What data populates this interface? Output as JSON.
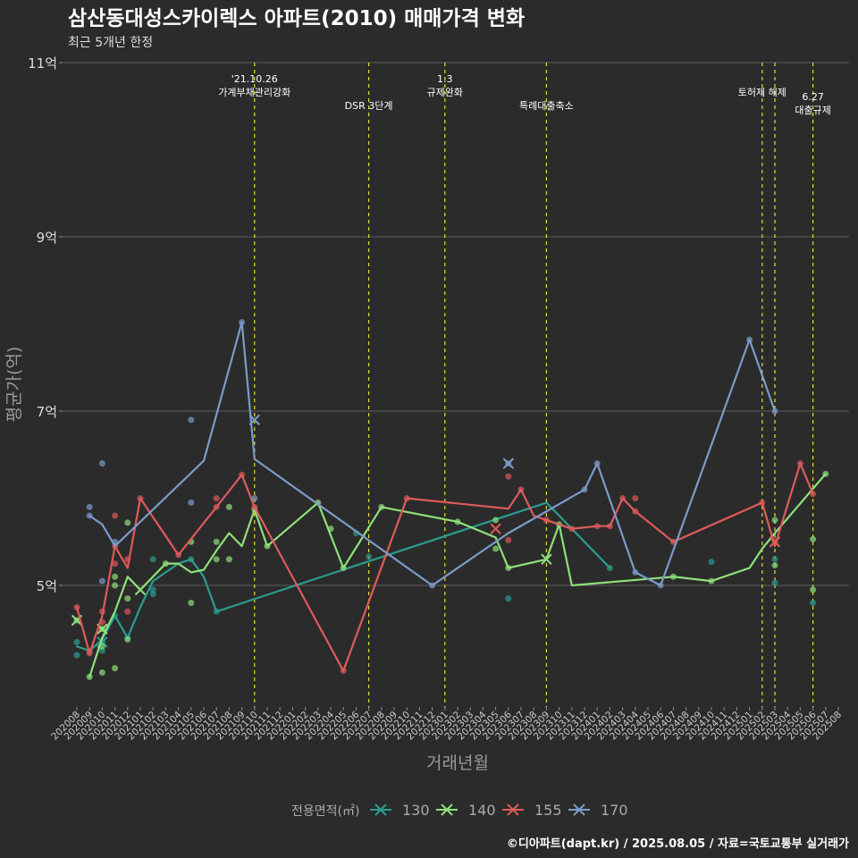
{
  "chart_data": {
    "type": "line",
    "title": "삼산동대성스카이렉스 아파트(2010) 매매가격 변화",
    "subtitle": "최근 5개년 한정",
    "xlabel": "거래년월",
    "ylabel": "평균가(억)",
    "caption": "©디아파트(dapt.kr) / 2025.08.05 / 자료=국토교통부 실거래가",
    "legend_title": "전용면적(㎡)",
    "legend_position": "bottom",
    "grid": true,
    "ylim": [
      3.7,
      11.0
    ],
    "y_ticks": [
      {
        "value": 5,
        "label": "5억"
      },
      {
        "value": 7,
        "label": "7억"
      },
      {
        "value": 9,
        "label": "9억"
      },
      {
        "value": 11,
        "label": "11억"
      }
    ],
    "months": [
      "202008",
      "202009",
      "202010",
      "202011",
      "202012",
      "202101",
      "202102",
      "202103",
      "202104",
      "202105",
      "202106",
      "202107",
      "202108",
      "202109",
      "202110",
      "202111",
      "202112",
      "202201",
      "202202",
      "202203",
      "202204",
      "202205",
      "202206",
      "202207",
      "202208",
      "202209",
      "202210",
      "202211",
      "202212",
      "202301",
      "202302",
      "202303",
      "202304",
      "202305",
      "202306",
      "202307",
      "202308",
      "202309",
      "202310",
      "202311",
      "202312",
      "202401",
      "202402",
      "202403",
      "202404",
      "202405",
      "202406",
      "202407",
      "202408",
      "202409",
      "202410",
      "202411",
      "202412",
      "202501",
      "202502",
      "202503",
      "202504",
      "202505",
      "202506",
      "202507",
      "202508"
    ],
    "events": [
      {
        "month": "202110",
        "label_lines": [
          "'21.10.26",
          "가계부채관리강화"
        ],
        "label_row": 0
      },
      {
        "month": "202207",
        "label_lines": [
          "DSR 3단계"
        ],
        "label_row": 2
      },
      {
        "month": "202301",
        "label_lines": [
          "1.3",
          "규제완화"
        ],
        "label_row": 0
      },
      {
        "month": "202309",
        "label_lines": [
          "특례대출축소"
        ],
        "label_row": 2
      },
      {
        "month": "202502",
        "label_lines": [
          "토허제 해제"
        ],
        "label_row": 1
      },
      {
        "month": "202503",
        "label_lines": [],
        "label_row": 1
      },
      {
        "month": "202506",
        "label_lines": [
          "6.27",
          "대출규제"
        ],
        "label_row": 3
      }
    ],
    "series": [
      {
        "name": "130",
        "color": "#2a9d8f",
        "line": [
          [
            "202008",
            4.3
          ],
          [
            "202009",
            4.25
          ],
          [
            "202010",
            4.38
          ],
          [
            "202011",
            4.65
          ],
          [
            "202012",
            4.4
          ],
          [
            "202101",
            4.75
          ],
          [
            "202102",
            5.05
          ],
          [
            "202104",
            5.25
          ],
          [
            "202105",
            5.3
          ],
          [
            "202106",
            5.1
          ],
          [
            "202107",
            4.7
          ],
          [
            "202309",
            5.95
          ],
          [
            "202402",
            5.2
          ]
        ],
        "points": [
          [
            "202008",
            4.2
          ],
          [
            "202008",
            4.35
          ],
          [
            "202009",
            4.25
          ],
          [
            "202010",
            4.25
          ],
          [
            "202010",
            4.35
          ],
          [
            "202011",
            4.65
          ],
          [
            "202012",
            4.4
          ],
          [
            "202102",
            4.9
          ],
          [
            "202102",
            4.95
          ],
          [
            "202102",
            5.3
          ],
          [
            "202105",
            5.3
          ],
          [
            "202107",
            4.7
          ],
          [
            "202206",
            5.6
          ],
          [
            "202207",
            5.33
          ],
          [
            "202306",
            4.85
          ],
          [
            "202402",
            5.2
          ],
          [
            "202410",
            5.27
          ],
          [
            "202503",
            5.03
          ],
          [
            "202503",
            5.3
          ],
          [
            "202506",
            4.8
          ]
        ],
        "markers": [
          [
            "202010",
            4.35
          ]
        ]
      },
      {
        "name": "140",
        "color": "#8fe07a",
        "line": [
          [
            "202009",
            3.95
          ],
          [
            "202010",
            4.4
          ],
          [
            "202011",
            4.7
          ],
          [
            "202012",
            5.1
          ],
          [
            "202101",
            4.95
          ],
          [
            "202103",
            5.25
          ],
          [
            "202104",
            5.25
          ],
          [
            "202105",
            5.15
          ],
          [
            "202106",
            5.18
          ],
          [
            "202107",
            5.4
          ],
          [
            "202108",
            5.6
          ],
          [
            "202109",
            5.45
          ],
          [
            "202110",
            5.87
          ],
          [
            "202111",
            5.45
          ],
          [
            "202203",
            5.95
          ],
          [
            "202205",
            5.2
          ],
          [
            "202208",
            5.9
          ],
          [
            "202302",
            5.73
          ],
          [
            "202305",
            5.55
          ],
          [
            "202306",
            5.2
          ],
          [
            "202309",
            5.3
          ],
          [
            "202310",
            5.7
          ],
          [
            "202311",
            5.0
          ],
          [
            "202407",
            5.1
          ],
          [
            "202410",
            5.05
          ],
          [
            "202501",
            5.2
          ],
          [
            "202502",
            5.42
          ],
          [
            "202503",
            5.6
          ],
          [
            "202507",
            6.28
          ]
        ],
        "points": [
          [
            "202008",
            4.6
          ],
          [
            "202009",
            3.95
          ],
          [
            "202010",
            4.0
          ],
          [
            "202010",
            4.3
          ],
          [
            "202010",
            4.5
          ],
          [
            "202011",
            4.05
          ],
          [
            "202011",
            5.0
          ],
          [
            "202011",
            5.1
          ],
          [
            "202012",
            4.85
          ],
          [
            "202012",
            5.72
          ],
          [
            "202012",
            4.38
          ],
          [
            "202103",
            5.25
          ],
          [
            "202105",
            4.8
          ],
          [
            "202105",
            5.5
          ],
          [
            "202107",
            5.3
          ],
          [
            "202107",
            5.5
          ],
          [
            "202108",
            5.3
          ],
          [
            "202108",
            5.9
          ],
          [
            "202110",
            5.87
          ],
          [
            "202111",
            5.45
          ],
          [
            "202203",
            5.95
          ],
          [
            "202204",
            5.65
          ],
          [
            "202205",
            5.2
          ],
          [
            "202208",
            5.9
          ],
          [
            "202302",
            5.73
          ],
          [
            "202305",
            5.42
          ],
          [
            "202305",
            5.75
          ],
          [
            "202306",
            5.2
          ],
          [
            "202310",
            5.7
          ],
          [
            "202407",
            5.1
          ],
          [
            "202410",
            5.05
          ],
          [
            "202503",
            5.75
          ],
          [
            "202503",
            5.23
          ],
          [
            "202506",
            5.53
          ],
          [
            "202506",
            4.95
          ],
          [
            "202507",
            6.28
          ]
        ],
        "markers": [
          [
            "202008",
            4.6
          ],
          [
            "202010",
            4.5
          ],
          [
            "202101",
            4.95
          ],
          [
            "202309",
            5.3
          ]
        ]
      },
      {
        "name": "155",
        "color": "#e05a5a",
        "line": [
          [
            "202008",
            4.75
          ],
          [
            "202009",
            4.22
          ],
          [
            "202010",
            4.65
          ],
          [
            "202011",
            5.45
          ],
          [
            "202012",
            5.2
          ],
          [
            "202101",
            6.0
          ],
          [
            "202104",
            5.35
          ],
          [
            "202107",
            5.9
          ],
          [
            "202109",
            6.27
          ],
          [
            "202110",
            5.9
          ],
          [
            "202205",
            4.02
          ],
          [
            "202210",
            6.0
          ],
          [
            "202306",
            5.88
          ],
          [
            "202307",
            6.1
          ],
          [
            "202308",
            5.8
          ],
          [
            "202309",
            5.75
          ],
          [
            "202311",
            5.65
          ],
          [
            "202401",
            5.68
          ],
          [
            "202402",
            5.68
          ],
          [
            "202403",
            6.0
          ],
          [
            "202404",
            5.85
          ],
          [
            "202407",
            5.5
          ],
          [
            "202502",
            5.95
          ],
          [
            "202503",
            5.45
          ],
          [
            "202505",
            6.4
          ],
          [
            "202506",
            6.05
          ]
        ],
        "points": [
          [
            "202008",
            4.75
          ],
          [
            "202009",
            4.22
          ],
          [
            "202010",
            4.58
          ],
          [
            "202010",
            4.7
          ],
          [
            "202011",
            5.8
          ],
          [
            "202011",
            5.25
          ],
          [
            "202011",
            5.45
          ],
          [
            "202012",
            4.7
          ],
          [
            "202012",
            5.3
          ],
          [
            "202101",
            6.0
          ],
          [
            "202104",
            5.35
          ],
          [
            "202107",
            6.0
          ],
          [
            "202107",
            5.9
          ],
          [
            "202109",
            6.27
          ],
          [
            "202110",
            5.9
          ],
          [
            "202205",
            4.02
          ],
          [
            "202210",
            6.0
          ],
          [
            "202306",
            6.25
          ],
          [
            "202306",
            5.52
          ],
          [
            "202307",
            6.1
          ],
          [
            "202309",
            5.75
          ],
          [
            "202311",
            5.65
          ],
          [
            "202401",
            5.68
          ],
          [
            "202402",
            5.68
          ],
          [
            "202403",
            6.0
          ],
          [
            "202404",
            6.0
          ],
          [
            "202404",
            5.85
          ],
          [
            "202407",
            5.5
          ],
          [
            "202502",
            5.95
          ],
          [
            "202503",
            5.5
          ],
          [
            "202505",
            6.4
          ],
          [
            "202506",
            6.05
          ]
        ],
        "markers": [
          [
            "202305",
            5.65
          ],
          [
            "202503",
            5.5
          ]
        ]
      },
      {
        "name": "170",
        "color": "#7b9bc8",
        "line": [
          [
            "202009",
            5.8
          ],
          [
            "202010",
            5.7
          ],
          [
            "202011",
            5.45
          ],
          [
            "202106",
            6.43
          ],
          [
            "202109",
            8.02
          ],
          [
            "202110",
            6.45
          ],
          [
            "202212",
            5.0
          ],
          [
            "202306",
            5.6
          ],
          [
            "202312",
            6.1
          ],
          [
            "202401",
            6.4
          ],
          [
            "202404",
            5.15
          ],
          [
            "202406",
            5.0
          ],
          [
            "202501",
            7.82
          ],
          [
            "202503",
            7.0
          ]
        ],
        "points": [
          [
            "202009",
            5.9
          ],
          [
            "202009",
            5.8
          ],
          [
            "202010",
            6.4
          ],
          [
            "202010",
            5.05
          ],
          [
            "202011",
            5.5
          ],
          [
            "202105",
            6.9
          ],
          [
            "202105",
            5.95
          ],
          [
            "202109",
            8.02
          ],
          [
            "202110",
            6.0
          ],
          [
            "202212",
            5.0
          ],
          [
            "202306",
            6.4
          ],
          [
            "202312",
            6.1
          ],
          [
            "202401",
            6.4
          ],
          [
            "202404",
            5.15
          ],
          [
            "202406",
            5.0
          ],
          [
            "202501",
            7.82
          ],
          [
            "202503",
            7.0
          ]
        ],
        "markers": [
          [
            "202110",
            6.9
          ],
          [
            "202306",
            6.4
          ]
        ]
      }
    ]
  }
}
